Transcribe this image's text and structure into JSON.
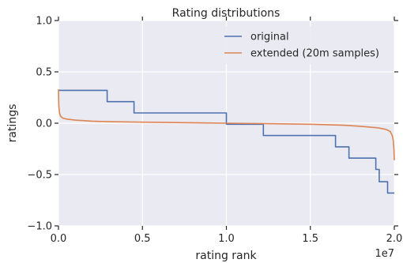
{
  "chart_data": {
    "type": "line",
    "title": "Rating distributions",
    "xlabel": "rating rank",
    "ylabel": "ratings",
    "x_offset_label": "1e7",
    "xlim": [
      0,
      20000000
    ],
    "ylim": [
      -1.0,
      1.0
    ],
    "x_ticks": [
      0,
      5000000,
      10000000,
      15000000,
      20000000
    ],
    "x_tick_labels": [
      "0.0",
      "0.5",
      "1.0",
      "1.5",
      "2.0"
    ],
    "y_ticks": [
      1.0,
      0.5,
      0.0,
      -0.5,
      -1.0
    ],
    "y_tick_labels": [
      "1.0",
      "0.5",
      "0.0",
      "−0.5",
      "−1.0"
    ],
    "grid": true,
    "legend_position": "top-right",
    "series": [
      {
        "name": "original",
        "color": "#4c72b0",
        "style": "step",
        "x": [
          0,
          2900000,
          2900000,
          4500000,
          4500000,
          10000000,
          10000000,
          12200000,
          12200000,
          16500000,
          16500000,
          17300000,
          17300000,
          18900000,
          18900000,
          19100000,
          19100000,
          19600000,
          19600000,
          20000000
        ],
        "y": [
          0.32,
          0.32,
          0.21,
          0.21,
          0.1,
          0.1,
          -0.01,
          -0.01,
          -0.12,
          -0.12,
          -0.23,
          -0.23,
          -0.34,
          -0.34,
          -0.45,
          -0.45,
          -0.57,
          -0.57,
          -0.68,
          -0.68
        ]
      },
      {
        "name": "extended (20m samples)",
        "color": "#dd8452",
        "style": "line",
        "x": [
          0,
          20000,
          60000,
          120000,
          250000,
          500000,
          1000000,
          2000000,
          3000000,
          5000000,
          7500000,
          10000000,
          12500000,
          15000000,
          17000000,
          18000000,
          19000000,
          19500000,
          19750000,
          19880000,
          19940000,
          19980000,
          20000000
        ],
        "y": [
          0.33,
          0.17,
          0.1,
          0.07,
          0.05,
          0.04,
          0.03,
          0.02,
          0.015,
          0.01,
          0.005,
          0.0,
          -0.005,
          -0.01,
          -0.02,
          -0.03,
          -0.045,
          -0.06,
          -0.08,
          -0.12,
          -0.17,
          -0.26,
          -0.36
        ]
      }
    ]
  }
}
